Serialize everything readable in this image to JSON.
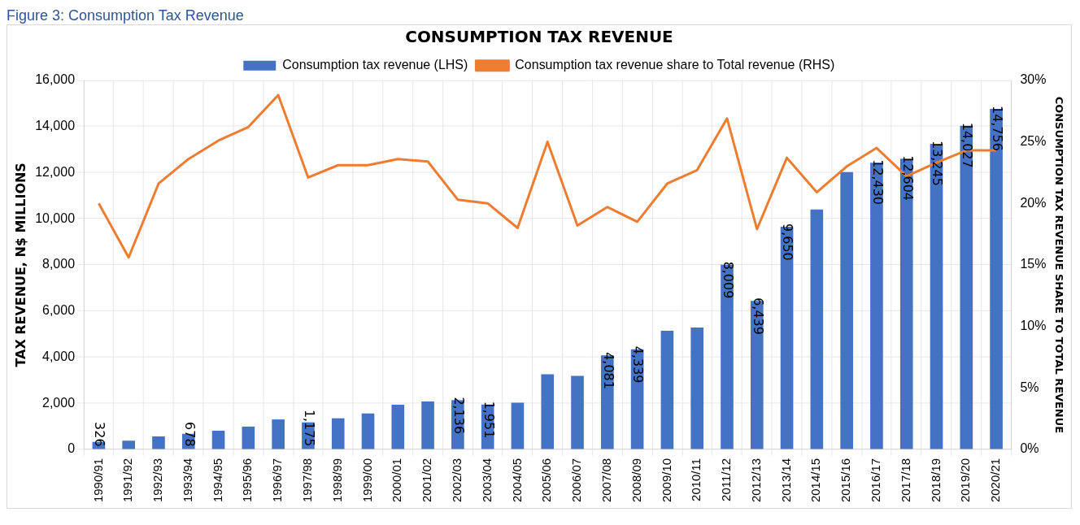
{
  "chart_data": {
    "type": "bar",
    "title": "CONSUMPTION TAX REVENUE",
    "ylabel": "TAX REVENUE, N$ MILLIONS",
    "y2label": "CONSUMPTION TAX REVENUE SHARE TO TOTAL REVENUE",
    "annotations": [
      "Figure 3: Consumption Tax Revenue"
    ],
    "categories": [
      "1990/91",
      "1991/92",
      "1992/93",
      "1993/94",
      "1994/95",
      "1995/96",
      "1996/97",
      "1997/98",
      "1998/99",
      "1999/00",
      "2000/01",
      "2001/02",
      "2002/03",
      "2003/04",
      "2004/05",
      "2005/06",
      "2006/07",
      "2007/08",
      "2008/09",
      "2009/10",
      "2010/11",
      "2011/12",
      "2012/13",
      "2013/14",
      "2014/15",
      "2015/16",
      "2016/17",
      "2017/18",
      "2018/19",
      "2019/20",
      "2020/21"
    ],
    "series": [
      {
        "name": "Consumption tax revenue (LHS)",
        "color": "#4472c4",
        "values": [
          326,
          380,
          560,
          678,
          810,
          990,
          1300,
          1175,
          1350,
          1560,
          1940,
          2080,
          2136,
          1951,
          2030,
          3260,
          3190,
          4081,
          4339,
          5140,
          5280,
          8009,
          6439,
          9650,
          10400,
          12020,
          12430,
          12604,
          13245,
          14027,
          14756
        ],
        "value_labels": [
          "326",
          null,
          null,
          "678",
          null,
          null,
          null,
          "1,175",
          null,
          null,
          null,
          null,
          "2,136",
          "1,951",
          null,
          null,
          null,
          "4,081",
          "4,339",
          null,
          null,
          "8,009",
          "6,439",
          "9,650",
          null,
          null,
          "12,430",
          "12,604",
          "13,245",
          "14,027",
          "14,756"
        ]
      },
      {
        "name": "Consumption tax revenue share to Total revenue (RHS)",
        "type": "line",
        "axis": "y2",
        "color": "#ed7d31",
        "values": [
          20.0,
          15.6,
          21.6,
          23.6,
          25.1,
          26.2,
          28.8,
          22.1,
          23.1,
          23.1,
          23.6,
          23.4,
          20.3,
          20.0,
          18.0,
          25.0,
          18.2,
          19.7,
          18.5,
          21.6,
          22.7,
          26.9,
          17.9,
          23.7,
          20.9,
          23.0,
          24.5,
          22.2,
          23.3,
          24.3,
          24.3
        ]
      }
    ],
    "ylim": [
      0,
      16000
    ],
    "yticks": [
      {
        "value": 0,
        "label": "0"
      },
      {
        "value": 2000,
        "label": "2,000"
      },
      {
        "value": 4000,
        "label": "4,000"
      },
      {
        "value": 6000,
        "label": "6,000"
      },
      {
        "value": 8000,
        "label": "8,000"
      },
      {
        "value": 10000,
        "label": "10,000"
      },
      {
        "value": 12000,
        "label": "12,000"
      },
      {
        "value": 14000,
        "label": "14,000"
      },
      {
        "value": 16000,
        "label": "16,000"
      }
    ],
    "y2lim": [
      0,
      30
    ],
    "y2ticks": [
      {
        "value": 0,
        "label": "0%"
      },
      {
        "value": 5,
        "label": "5%"
      },
      {
        "value": 10,
        "label": "10%"
      },
      {
        "value": 15,
        "label": "15%"
      },
      {
        "value": 20,
        "label": "20%"
      },
      {
        "value": 25,
        "label": "25%"
      },
      {
        "value": 30,
        "label": "30%"
      }
    ],
    "grid": true,
    "legend": "top",
    "marker": "none",
    "line_style": "solid"
  }
}
